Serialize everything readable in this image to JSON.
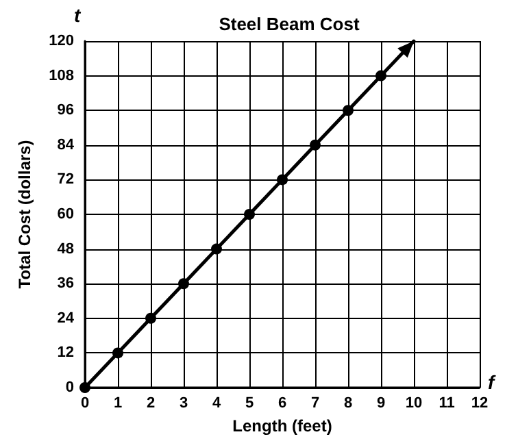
{
  "chart_data": {
    "type": "line",
    "title": "Steel Beam Cost",
    "xlabel": "Length (feet)",
    "ylabel": "Total Cost (dollars)",
    "annotations": [
      "t",
      "f"
    ],
    "x": [
      0,
      1,
      2,
      3,
      4,
      5,
      6,
      7,
      8,
      9,
      10
    ],
    "series": [
      {
        "color": "#000000",
        "values": [
          0,
          12,
          24,
          36,
          48,
          60,
          72,
          84,
          96,
          108,
          120
        ]
      }
    ],
    "xlim": [
      0,
      12
    ],
    "xticks": [
      0,
      1,
      2,
      3,
      4,
      5,
      6,
      7,
      8,
      9,
      10,
      11,
      12
    ],
    "ylim": [
      0,
      120
    ],
    "yticks": [
      0,
      12,
      24,
      36,
      48,
      60,
      72,
      84,
      96,
      108,
      120
    ],
    "grid": true,
    "marker": "circle",
    "line_style": "solid"
  }
}
